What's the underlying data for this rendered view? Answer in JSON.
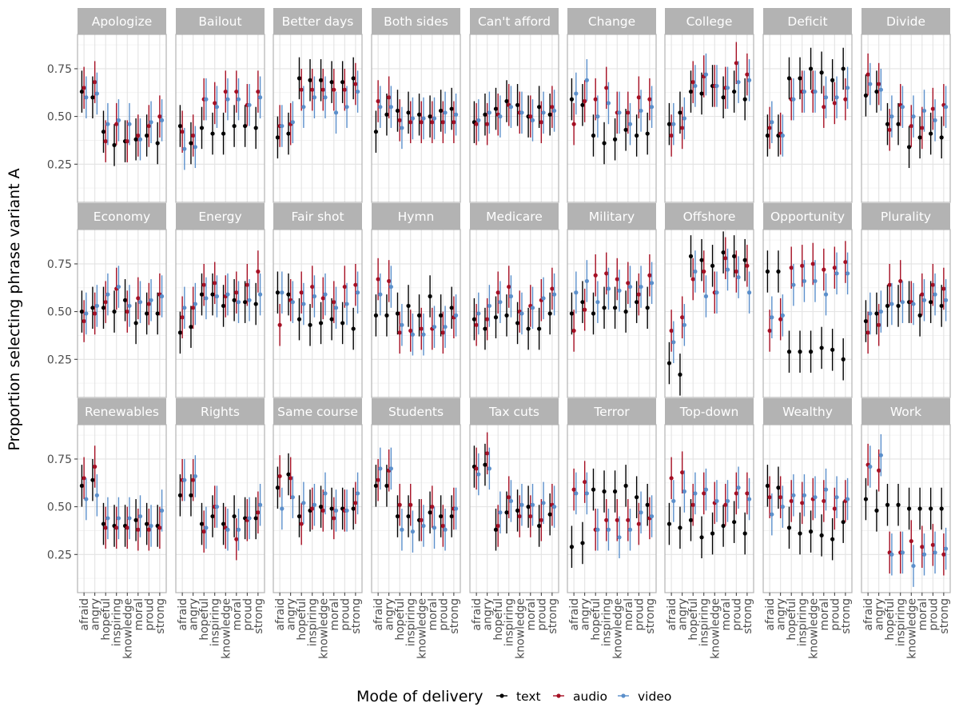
{
  "chart_data": {
    "type": "scatter",
    "ylabel": "Proportion selecting phrase variant A",
    "xlabel": "",
    "ylim": [
      0.05,
      0.93
    ],
    "yticks": [
      0.25,
      0.5,
      0.75
    ],
    "ytick_labels": [
      "0.25",
      "0.50",
      "0.75"
    ],
    "categories": [
      "afraid",
      "angry",
      "hopeful",
      "inspiring",
      "knowledge",
      "moral",
      "proud",
      "strong"
    ],
    "grid": true,
    "legend": {
      "title": "Mode of delivery",
      "position": "bottom",
      "entries": [
        "text",
        "audio",
        "video"
      ]
    },
    "series_colors": {
      "text": "#000000",
      "audio": "#A50F23",
      "video": "#5B8FCB"
    },
    "error_bar_half_width": 0.11,
    "panels": [
      {
        "title": "Apologize",
        "text": [
          0.63,
          0.6,
          0.42,
          0.35,
          0.37,
          0.38,
          0.4,
          0.36
        ],
        "audio": [
          0.65,
          0.68,
          0.37,
          0.46,
          0.37,
          0.4,
          0.45,
          0.5
        ],
        "video": [
          0.6,
          0.62,
          0.46,
          0.48,
          0.46,
          0.38,
          0.47,
          0.48
        ]
      },
      {
        "title": "Bailout",
        "text": [
          0.45,
          0.36,
          0.44,
          0.41,
          0.41,
          0.45,
          0.45,
          0.44
        ],
        "audio": [
          0.42,
          0.4,
          0.59,
          0.57,
          0.63,
          0.63,
          0.56,
          0.63
        ],
        "video": [
          0.33,
          0.34,
          0.59,
          0.55,
          0.59,
          0.59,
          0.56,
          0.6
        ]
      },
      {
        "title": "Better days",
        "text": [
          0.39,
          0.41,
          0.7,
          0.69,
          0.69,
          0.68,
          0.68,
          0.7
        ],
        "audio": [
          0.45,
          0.46,
          0.64,
          0.64,
          0.64,
          0.64,
          0.64,
          0.67
        ],
        "video": [
          0.45,
          0.47,
          0.55,
          0.6,
          0.6,
          0.52,
          0.55,
          0.63
        ]
      },
      {
        "title": "Both sides",
        "text": [
          0.42,
          0.51,
          0.53,
          0.52,
          0.51,
          0.5,
          0.53,
          0.54
        ],
        "audio": [
          0.58,
          0.6,
          0.48,
          0.47,
          0.47,
          0.47,
          0.47,
          0.47
        ],
        "video": [
          0.55,
          0.55,
          0.44,
          0.49,
          0.49,
          0.49,
          0.52,
          0.51
        ]
      },
      {
        "title": "Can't afford",
        "text": [
          0.47,
          0.51,
          0.54,
          0.58,
          0.56,
          0.5,
          0.55,
          0.51
        ],
        "audio": [
          0.46,
          0.46,
          0.51,
          0.56,
          0.52,
          0.5,
          0.47,
          0.55
        ],
        "video": [
          0.48,
          0.52,
          0.5,
          0.55,
          0.52,
          0.48,
          0.52,
          0.53
        ]
      },
      {
        "title": "Change",
        "text": [
          0.59,
          0.56,
          0.4,
          0.36,
          0.38,
          0.43,
          0.4,
          0.41
        ],
        "audio": [
          0.46,
          0.58,
          0.59,
          0.65,
          0.52,
          0.52,
          0.6,
          0.59
        ],
        "video": [
          0.62,
          0.69,
          0.5,
          0.57,
          0.52,
          0.46,
          0.53,
          0.55
        ]
      },
      {
        "title": "College",
        "text": [
          0.46,
          0.52,
          0.63,
          0.62,
          0.66,
          0.6,
          0.63,
          0.59
        ],
        "audio": [
          0.4,
          0.44,
          0.68,
          0.71,
          0.66,
          0.65,
          0.78,
          0.72
        ],
        "video": [
          0.46,
          0.49,
          0.66,
          0.72,
          0.66,
          0.65,
          0.68,
          0.69
        ]
      },
      {
        "title": "Deficit",
        "text": [
          0.4,
          0.4,
          0.7,
          0.7,
          0.75,
          0.73,
          0.69,
          0.75
        ],
        "audio": [
          0.44,
          0.41,
          0.59,
          0.63,
          0.63,
          0.55,
          0.57,
          0.59
        ],
        "video": [
          0.47,
          0.4,
          0.59,
          0.63,
          0.63,
          0.6,
          0.6,
          0.65
        ]
      },
      {
        "title": "Divide",
        "text": [
          0.61,
          0.63,
          0.46,
          0.46,
          0.34,
          0.39,
          0.41,
          0.39
        ],
        "audio": [
          0.72,
          0.67,
          0.43,
          0.56,
          0.45,
          0.44,
          0.54,
          0.56
        ],
        "video": [
          0.67,
          0.64,
          0.5,
          0.55,
          0.5,
          0.53,
          0.48,
          0.55
        ]
      },
      {
        "title": "Economy",
        "text": [
          0.5,
          0.52,
          0.52,
          0.5,
          0.56,
          0.44,
          0.49,
          0.49
        ],
        "audio": [
          0.45,
          0.49,
          0.55,
          0.62,
          0.5,
          0.57,
          0.54,
          0.59
        ],
        "video": [
          0.49,
          0.53,
          0.59,
          0.63,
          0.53,
          0.55,
          0.56,
          0.58
        ]
      },
      {
        "title": "Energy",
        "text": [
          0.39,
          0.42,
          0.59,
          0.59,
          0.53,
          0.56,
          0.55,
          0.54
        ],
        "audio": [
          0.47,
          0.52,
          0.64,
          0.65,
          0.58,
          0.6,
          0.64,
          0.71
        ],
        "video": [
          0.52,
          0.54,
          0.57,
          0.58,
          0.59,
          0.55,
          0.56,
          0.59
        ]
      },
      {
        "title": "Fair shot",
        "text": [
          0.6,
          0.59,
          0.46,
          0.43,
          0.44,
          0.46,
          0.44,
          0.41
        ],
        "audio": [
          0.43,
          0.56,
          0.6,
          0.63,
          0.57,
          0.55,
          0.63,
          0.64
        ],
        "video": [
          0.6,
          0.55,
          0.54,
          0.58,
          0.59,
          0.52,
          0.54,
          0.6
        ]
      },
      {
        "title": "Hymn",
        "text": [
          0.48,
          0.48,
          0.49,
          0.53,
          0.48,
          0.58,
          0.48,
          0.52
        ],
        "audio": [
          0.67,
          0.66,
          0.39,
          0.4,
          0.41,
          0.41,
          0.39,
          0.47
        ],
        "video": [
          0.59,
          0.63,
          0.43,
          0.38,
          0.38,
          0.42,
          0.42,
          0.48
        ]
      },
      {
        "title": "Medicare",
        "text": [
          0.46,
          0.41,
          0.47,
          0.48,
          0.44,
          0.41,
          0.41,
          0.49
        ],
        "audio": [
          0.43,
          0.46,
          0.6,
          0.63,
          0.5,
          0.53,
          0.56,
          0.62
        ],
        "video": [
          0.49,
          0.53,
          0.55,
          0.58,
          0.49,
          0.52,
          0.57,
          0.59
        ]
      },
      {
        "title": "Military",
        "text": [
          0.49,
          0.55,
          0.49,
          0.52,
          0.52,
          0.5,
          0.55,
          0.52
        ],
        "audio": [
          0.4,
          0.51,
          0.69,
          0.7,
          0.67,
          0.65,
          0.59,
          0.69
        ],
        "video": [
          0.6,
          0.66,
          0.55,
          0.62,
          0.61,
          0.63,
          0.63,
          0.65
        ]
      },
      {
        "title": "Offshore",
        "text": [
          0.23,
          0.17,
          0.79,
          0.77,
          0.74,
          0.81,
          0.79,
          0.77
        ],
        "audio": [
          0.4,
          0.47,
          0.67,
          0.71,
          0.6,
          0.78,
          0.71,
          0.74
        ],
        "video": [
          0.34,
          0.43,
          0.71,
          0.58,
          0.6,
          0.72,
          0.68,
          0.6
        ]
      },
      {
        "title": "Opportunity",
        "text": [
          0.71,
          0.71,
          0.29,
          0.29,
          0.29,
          0.31,
          0.3,
          0.25
        ],
        "audio": [
          0.4,
          0.46,
          0.73,
          0.74,
          0.75,
          0.72,
          0.73,
          0.76
        ],
        "video": [
          0.47,
          0.48,
          0.64,
          0.66,
          0.66,
          0.59,
          0.7,
          0.7
        ]
      },
      {
        "title": "Plurality",
        "text": [
          0.45,
          0.49,
          0.53,
          0.53,
          0.55,
          0.48,
          0.55,
          0.53
        ],
        "audio": [
          0.39,
          0.43,
          0.64,
          0.66,
          0.55,
          0.59,
          0.64,
          0.62
        ],
        "video": [
          0.49,
          0.5,
          0.54,
          0.55,
          0.54,
          0.56,
          0.59,
          0.56
        ]
      },
      {
        "title": "Renewables",
        "text": [
          0.61,
          0.64,
          0.41,
          0.4,
          0.4,
          0.43,
          0.41,
          0.4
        ],
        "audio": [
          0.65,
          0.71,
          0.39,
          0.39,
          0.39,
          0.38,
          0.38,
          0.39
        ],
        "video": [
          0.54,
          0.56,
          0.44,
          0.44,
          0.44,
          0.45,
          0.4,
          0.48
        ]
      },
      {
        "title": "Rights",
        "text": [
          0.56,
          0.56,
          0.41,
          0.45,
          0.41,
          0.45,
          0.44,
          0.44
        ],
        "audio": [
          0.64,
          0.64,
          0.37,
          0.5,
          0.39,
          0.33,
          0.43,
          0.47
        ],
        "video": [
          0.64,
          0.66,
          0.39,
          0.5,
          0.38,
          0.38,
          0.44,
          0.51
        ]
      },
      {
        "title": "Same course",
        "text": [
          0.6,
          0.67,
          0.45,
          0.48,
          0.5,
          0.49,
          0.49,
          0.49
        ],
        "audio": [
          0.66,
          0.65,
          0.41,
          0.49,
          0.48,
          0.44,
          0.48,
          0.52
        ],
        "video": [
          0.49,
          0.55,
          0.52,
          0.51,
          0.57,
          0.48,
          0.48,
          0.57
        ]
      },
      {
        "title": "Students",
        "text": [
          0.61,
          0.61,
          0.45,
          0.45,
          0.43,
          0.47,
          0.45,
          0.45
        ],
        "audio": [
          0.64,
          0.69,
          0.51,
          0.51,
          0.43,
          0.5,
          0.4,
          0.49
        ],
        "video": [
          0.7,
          0.7,
          0.38,
          0.37,
          0.4,
          0.39,
          0.38,
          0.49
        ]
      },
      {
        "title": "Tax cuts",
        "text": [
          0.71,
          0.72,
          0.38,
          0.47,
          0.48,
          0.5,
          0.4,
          0.46
        ],
        "audio": [
          0.7,
          0.78,
          0.4,
          0.55,
          0.45,
          0.45,
          0.43,
          0.51
        ],
        "video": [
          0.67,
          0.7,
          0.47,
          0.53,
          0.51,
          0.51,
          0.52,
          0.5
        ]
      },
      {
        "title": "Terror",
        "text": [
          0.29,
          0.31,
          0.59,
          0.58,
          0.58,
          0.61,
          0.55,
          0.51
        ],
        "audio": [
          0.59,
          0.63,
          0.38,
          0.43,
          0.43,
          0.43,
          0.41,
          0.44
        ],
        "video": [
          0.57,
          0.57,
          0.38,
          0.38,
          0.34,
          0.38,
          0.47,
          0.45
        ]
      },
      {
        "title": "Top-down",
        "text": [
          0.41,
          0.39,
          0.43,
          0.34,
          0.36,
          0.4,
          0.42,
          0.36
        ],
        "audio": [
          0.65,
          0.68,
          0.51,
          0.57,
          0.52,
          0.51,
          0.57,
          0.57
        ],
        "video": [
          0.53,
          0.58,
          0.57,
          0.59,
          0.53,
          0.53,
          0.6,
          0.54
        ]
      },
      {
        "title": "Wealthy",
        "text": [
          0.61,
          0.6,
          0.39,
          0.36,
          0.37,
          0.35,
          0.33,
          0.42
        ],
        "audio": [
          0.55,
          0.55,
          0.53,
          0.52,
          0.54,
          0.53,
          0.49,
          0.53
        ],
        "video": [
          0.46,
          0.5,
          0.56,
          0.56,
          0.55,
          0.59,
          0.55,
          0.54
        ]
      },
      {
        "title": "Work",
        "text": [
          0.54,
          0.48,
          0.51,
          0.51,
          0.49,
          0.49,
          0.49,
          0.49
        ],
        "audio": [
          0.72,
          0.69,
          0.26,
          0.26,
          0.32,
          0.29,
          0.3,
          0.25
        ],
        "video": [
          0.71,
          0.77,
          0.25,
          0.26,
          0.19,
          0.25,
          0.26,
          0.28
        ]
      }
    ]
  }
}
